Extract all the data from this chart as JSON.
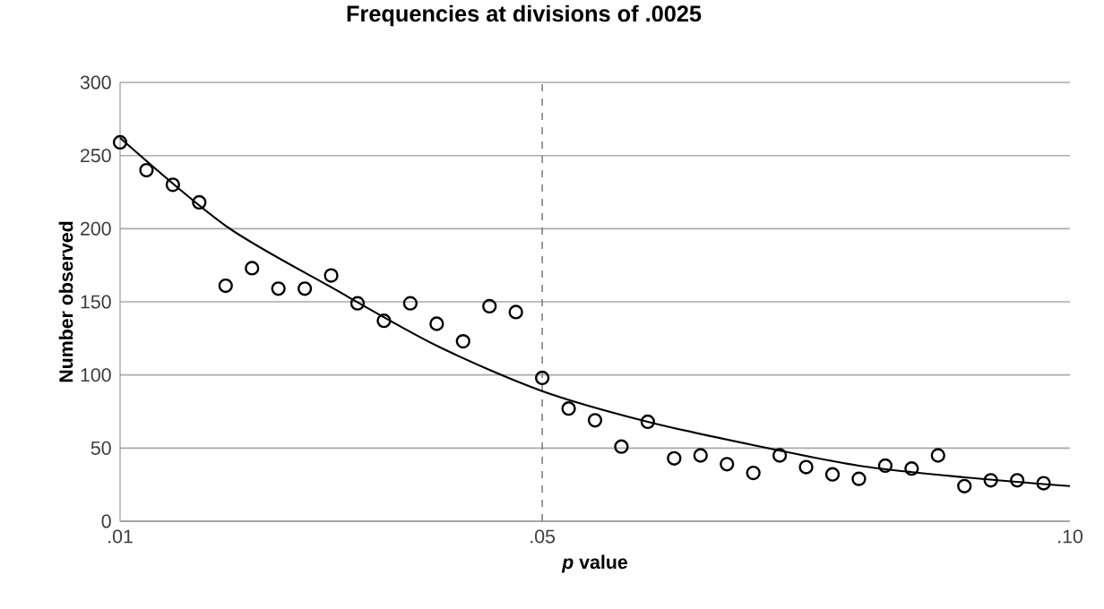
{
  "chart_data": {
    "type": "scatter",
    "title": "Frequencies at divisions of .0025",
    "xlabel": "*p* value",
    "ylabel": "Number observed",
    "xlim": [
      0.01,
      0.1
    ],
    "ylim": [
      0,
      300
    ],
    "xticks": [
      {
        "value": 0.01,
        "label": ".01"
      },
      {
        "value": 0.05,
        "label": ".05"
      },
      {
        "value": 0.1,
        "label": ".10"
      }
    ],
    "yticks": [
      0,
      50,
      100,
      150,
      200,
      250,
      300
    ],
    "grid": "y",
    "ref_lines": [
      {
        "axis": "x",
        "value": 0.05,
        "color": "#808080",
        "line_style": "dashed"
      }
    ],
    "series": [
      {
        "marker": "circle",
        "color": "#000000",
        "x": [
          0.01,
          0.0125,
          0.015,
          0.0175,
          0.02,
          0.0225,
          0.025,
          0.0275,
          0.03,
          0.0325,
          0.035,
          0.0375,
          0.04,
          0.0425,
          0.045,
          0.0475,
          0.05,
          0.0525,
          0.055,
          0.0575,
          0.06,
          0.0625,
          0.065,
          0.0675,
          0.07,
          0.0725,
          0.075,
          0.0775,
          0.08,
          0.0825,
          0.085,
          0.0875,
          0.09,
          0.0925,
          0.095,
          0.0975
        ],
        "values": [
          259,
          240,
          230,
          218,
          161,
          173,
          159,
          159,
          168,
          149,
          137,
          149,
          135,
          123,
          147,
          143,
          98,
          77,
          69,
          51,
          68,
          43,
          45,
          39,
          33,
          45,
          37,
          32,
          29,
          38,
          36,
          45,
          24,
          28,
          28,
          26
        ]
      },
      {
        "type": "line",
        "color": "#000000",
        "x": [
          0.01,
          0.02,
          0.03,
          0.04,
          0.05,
          0.06,
          0.07,
          0.08,
          0.09,
          0.1
        ],
        "values": [
          262,
          202,
          160,
          120,
          89,
          68,
          52,
          38,
          30,
          24
        ]
      }
    ]
  }
}
